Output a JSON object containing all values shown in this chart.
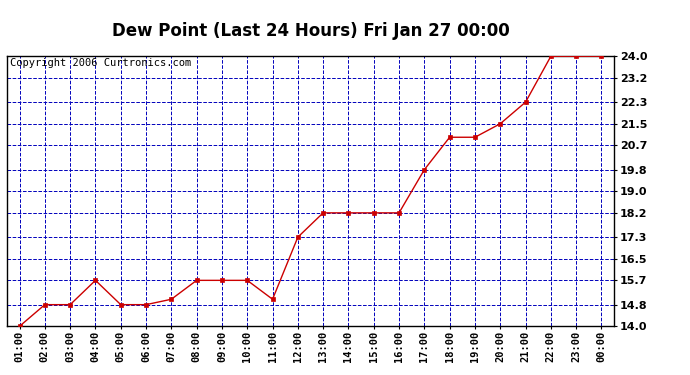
{
  "title": "Dew Point (Last 24 Hours) Fri Jan 27 00:00",
  "copyright": "Copyright 2006 Curtronics.com",
  "x_labels": [
    "01:00",
    "02:00",
    "03:00",
    "04:00",
    "05:00",
    "06:00",
    "07:00",
    "08:00",
    "09:00",
    "10:00",
    "11:00",
    "12:00",
    "13:00",
    "14:00",
    "15:00",
    "16:00",
    "17:00",
    "18:00",
    "19:00",
    "20:00",
    "21:00",
    "22:00",
    "23:00",
    "00:00"
  ],
  "y_values": [
    14.0,
    14.8,
    14.8,
    15.7,
    14.8,
    14.8,
    15.0,
    15.7,
    15.7,
    15.7,
    15.0,
    17.3,
    18.2,
    18.2,
    18.2,
    18.2,
    19.8,
    21.0,
    21.0,
    21.5,
    22.3,
    24.0,
    24.0,
    24.0
  ],
  "y_ticks": [
    14.0,
    14.8,
    15.7,
    16.5,
    17.3,
    18.2,
    19.0,
    19.8,
    20.7,
    21.5,
    22.3,
    23.2,
    24.0
  ],
  "y_min": 14.0,
  "y_max": 24.0,
  "line_color": "#cc0000",
  "marker_color": "#cc0000",
  "grid_color": "#0000bb",
  "bg_color": "#ffffff",
  "outer_bg": "#ffffff",
  "title_color": "#000000",
  "copyright_color": "#000000",
  "title_fontsize": 12,
  "copyright_fontsize": 7.5,
  "tick_fontsize": 7.5,
  "ytick_fontsize": 8
}
